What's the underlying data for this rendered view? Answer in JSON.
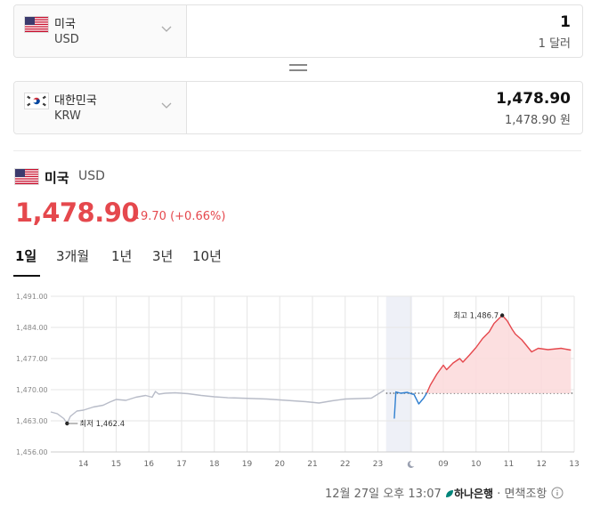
{
  "converter": {
    "from": {
      "country": "미국",
      "code": "USD",
      "flag": "us-flag-icon",
      "amount": "1",
      "amount_text": "1 달러"
    },
    "to": {
      "country": "대한민국",
      "code": "KRW",
      "flag": "kr-flag-icon",
      "amount": "1,478.90",
      "amount_text": "1,478.90 원"
    }
  },
  "detail": {
    "country": "미국",
    "code": "USD",
    "price": "1,478.90",
    "change": "9.70 (+0.66%)",
    "direction": "up",
    "up_color": "#e5484d"
  },
  "tabs": [
    {
      "label": "1일",
      "active": true
    },
    {
      "label": "3개월",
      "active": false
    },
    {
      "label": "1년",
      "active": false
    },
    {
      "label": "3년",
      "active": false
    },
    {
      "label": "10년",
      "active": false
    }
  ],
  "chart_data": {
    "type": "line",
    "y_ticks": [
      "1,491.00",
      "1,484.00",
      "1,477.00",
      "1,470.00",
      "1,463.00",
      "1,456.00"
    ],
    "ylim": [
      1456,
      1491
    ],
    "x_ticks": [
      "14",
      "15",
      "16",
      "17",
      "18",
      "19",
      "20",
      "21",
      "22",
      "23",
      "moon-icon",
      "09",
      "10",
      "11",
      "12",
      "13"
    ],
    "grid": true,
    "reference_line": 1469.2,
    "annotations": {
      "high_label": "최고 1,486.7",
      "high": 1486.7,
      "low_label": "최저 1,462.4",
      "low": 1462.4
    },
    "series": [
      {
        "segment": "overnight",
        "color": "#b8bcc8",
        "x": [
          0,
          0.2,
          0.4,
          0.5,
          0.6,
          0.8,
          1.0,
          1.3,
          1.6,
          1.8,
          2.0,
          2.3,
          2.6,
          2.9,
          3.1,
          3.2,
          3.3,
          3.5,
          3.8,
          4.2,
          4.6,
          5.0,
          5.4,
          5.8,
          6.2,
          6.6,
          7.0,
          7.4,
          7.8,
          8.2,
          8.6,
          9.0,
          9.4,
          9.8,
          10.2
        ],
        "y": [
          1465.0,
          1464.6,
          1463.5,
          1462.4,
          1464.0,
          1465.2,
          1465.4,
          1466.1,
          1466.5,
          1467.2,
          1467.8,
          1467.6,
          1468.3,
          1468.7,
          1468.3,
          1469.6,
          1469.0,
          1469.2,
          1469.3,
          1469.1,
          1468.7,
          1468.4,
          1468.2,
          1468.1,
          1468.0,
          1467.9,
          1467.7,
          1467.5,
          1467.3,
          1467.0,
          1467.5,
          1467.9,
          1468.0,
          1468.1,
          1469.9
        ]
      },
      {
        "segment": "session-below",
        "color": "#2f7fd0",
        "x": [
          10.5,
          10.55,
          10.7,
          10.9,
          11.05,
          11.1,
          11.25,
          11.4,
          11.5
        ],
        "y": [
          1463.5,
          1469.5,
          1469.2,
          1469.4,
          1469.0,
          1469.0,
          1466.8,
          1468.1,
          1469.3
        ]
      },
      {
        "segment": "session-above",
        "color": "#e5484d",
        "x": [
          11.5,
          11.6,
          11.8,
          12.0,
          12.1,
          12.3,
          12.5,
          12.6,
          12.8,
          13.0,
          13.2,
          13.4,
          13.55,
          13.7,
          13.8,
          13.95,
          14.1,
          14.2,
          14.4,
          14.5,
          14.7,
          14.9,
          15.2,
          15.6,
          15.9
        ],
        "y": [
          1469.3,
          1471.0,
          1473.5,
          1475.5,
          1474.5,
          1476.0,
          1477.0,
          1476.2,
          1477.8,
          1479.5,
          1481.5,
          1483.0,
          1484.9,
          1486.0,
          1486.7,
          1485.5,
          1483.6,
          1482.5,
          1481.2,
          1480.3,
          1478.5,
          1479.3,
          1479.0,
          1479.3,
          1478.9
        ]
      }
    ]
  },
  "footer": {
    "timestamp": "12월 27일 오후 13:07",
    "bank": "하나은행",
    "separator": "·",
    "disclaimer": "면책조항",
    "bank_icon": "hana-leaf-icon",
    "info_icon": "info-icon"
  }
}
